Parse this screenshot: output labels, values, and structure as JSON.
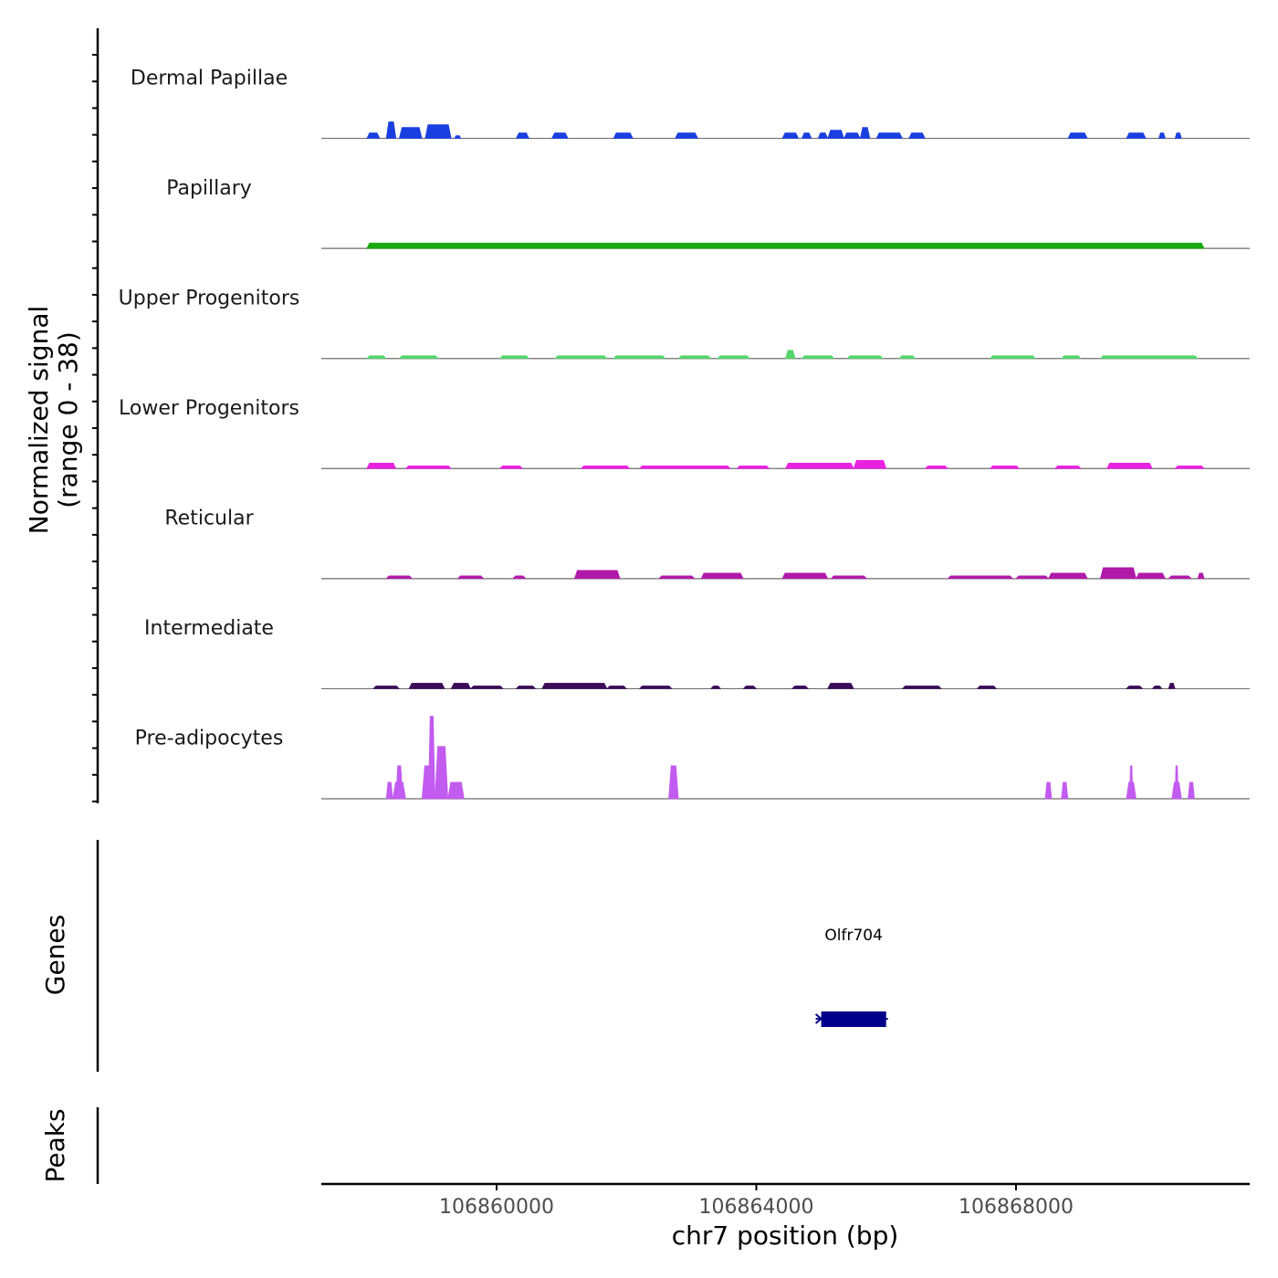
{
  "chart_data": {
    "type": "area",
    "title": "",
    "xlabel": "chr7 position (bp)",
    "ylabel_line1": "Normalized signal",
    "ylabel_line2": "(range 0 - 38)",
    "ylim": [
      0,
      38
    ],
    "xlim": [
      106857300,
      106871600
    ],
    "x_ticks": [
      106860000,
      106864000,
      106868000
    ],
    "x_tick_labels": [
      "106860000",
      "106864000",
      "106868000"
    ],
    "series": [
      {
        "name": "Dermal Papillae",
        "color": "#1a3fe0",
        "segments": [
          {
            "start": 106858000,
            "end": 106858200,
            "value": 2
          },
          {
            "start": 106858300,
            "end": 106858450,
            "value": 6
          },
          {
            "start": 106858500,
            "end": 106858850,
            "value": 4
          },
          {
            "start": 106858900,
            "end": 106859300,
            "value": 5
          },
          {
            "start": 106859350,
            "end": 106859450,
            "value": 1
          },
          {
            "start": 106860300,
            "end": 106860500,
            "value": 2
          },
          {
            "start": 106860850,
            "end": 106861100,
            "value": 2
          },
          {
            "start": 106861800,
            "end": 106862100,
            "value": 2
          },
          {
            "start": 106862750,
            "end": 106863100,
            "value": 2
          },
          {
            "start": 106864400,
            "end": 106864650,
            "value": 2
          },
          {
            "start": 106864700,
            "end": 106864850,
            "value": 2
          },
          {
            "start": 106864950,
            "end": 106865100,
            "value": 2
          },
          {
            "start": 106865100,
            "end": 106865350,
            "value": 3
          },
          {
            "start": 106865350,
            "end": 106865600,
            "value": 2
          },
          {
            "start": 106865600,
            "end": 106865750,
            "value": 4
          },
          {
            "start": 106865850,
            "end": 106866250,
            "value": 2
          },
          {
            "start": 106866350,
            "end": 106866600,
            "value": 2
          },
          {
            "start": 106868800,
            "end": 106869100,
            "value": 2
          },
          {
            "start": 106869700,
            "end": 106870000,
            "value": 2
          },
          {
            "start": 106870200,
            "end": 106870300,
            "value": 2
          },
          {
            "start": 106870450,
            "end": 106870550,
            "value": 2
          }
        ]
      },
      {
        "name": "Papillary",
        "color": "#18a80f",
        "segments": [
          {
            "start": 106858000,
            "end": 106870900,
            "value": 2
          }
        ]
      },
      {
        "name": "Upper Progenitors",
        "color": "#55d46a",
        "segments": [
          {
            "start": 106858000,
            "end": 106858300,
            "value": 1
          },
          {
            "start": 106858500,
            "end": 106859100,
            "value": 1
          },
          {
            "start": 106860050,
            "end": 106860500,
            "value": 1
          },
          {
            "start": 106860900,
            "end": 106861700,
            "value": 1
          },
          {
            "start": 106861800,
            "end": 106862600,
            "value": 1
          },
          {
            "start": 106862800,
            "end": 106863300,
            "value": 1
          },
          {
            "start": 106863400,
            "end": 106863900,
            "value": 1
          },
          {
            "start": 106864450,
            "end": 106864600,
            "value": 3
          },
          {
            "start": 106864700,
            "end": 106865200,
            "value": 1
          },
          {
            "start": 106865400,
            "end": 106865950,
            "value": 1
          },
          {
            "start": 106866200,
            "end": 106866450,
            "value": 1
          },
          {
            "start": 106867600,
            "end": 106868300,
            "value": 1
          },
          {
            "start": 106868700,
            "end": 106869000,
            "value": 1
          },
          {
            "start": 106869300,
            "end": 106870800,
            "value": 1
          }
        ]
      },
      {
        "name": "Lower Progenitors",
        "color": "#e822e0",
        "segments": [
          {
            "start": 106858000,
            "end": 106858450,
            "value": 2
          },
          {
            "start": 106858600,
            "end": 106859300,
            "value": 1
          },
          {
            "start": 106860050,
            "end": 106860400,
            "value": 1
          },
          {
            "start": 106861300,
            "end": 106862050,
            "value": 1
          },
          {
            "start": 106862200,
            "end": 106863600,
            "value": 1
          },
          {
            "start": 106863700,
            "end": 106864200,
            "value": 1
          },
          {
            "start": 106864450,
            "end": 106865500,
            "value": 2
          },
          {
            "start": 106865500,
            "end": 106866000,
            "value": 3
          },
          {
            "start": 106866600,
            "end": 106866950,
            "value": 1
          },
          {
            "start": 106867600,
            "end": 106868050,
            "value": 1
          },
          {
            "start": 106868600,
            "end": 106869000,
            "value": 1
          },
          {
            "start": 106869400,
            "end": 106870100,
            "value": 2
          },
          {
            "start": 106870450,
            "end": 106870900,
            "value": 1
          }
        ]
      },
      {
        "name": "Reticular",
        "color": "#b01aa8",
        "segments": [
          {
            "start": 106858300,
            "end": 106858700,
            "value": 1
          },
          {
            "start": 106859400,
            "end": 106859800,
            "value": 1
          },
          {
            "start": 106860250,
            "end": 106860450,
            "value": 1
          },
          {
            "start": 106861200,
            "end": 106861900,
            "value": 3
          },
          {
            "start": 106862500,
            "end": 106863050,
            "value": 1
          },
          {
            "start": 106863150,
            "end": 106863800,
            "value": 2
          },
          {
            "start": 106864400,
            "end": 106865100,
            "value": 2
          },
          {
            "start": 106865150,
            "end": 106865700,
            "value": 1
          },
          {
            "start": 106866950,
            "end": 106867950,
            "value": 1
          },
          {
            "start": 106868000,
            "end": 106868500,
            "value": 1
          },
          {
            "start": 106868500,
            "end": 106869100,
            "value": 2
          },
          {
            "start": 106869300,
            "end": 106869850,
            "value": 4
          },
          {
            "start": 106869850,
            "end": 106870300,
            "value": 2
          },
          {
            "start": 106870350,
            "end": 106870700,
            "value": 1
          },
          {
            "start": 106870800,
            "end": 106870900,
            "value": 2
          }
        ]
      },
      {
        "name": "Intermediate",
        "color": "#3b0a59",
        "segments": [
          {
            "start": 106858100,
            "end": 106858500,
            "value": 1
          },
          {
            "start": 106858650,
            "end": 106859200,
            "value": 2
          },
          {
            "start": 106859300,
            "end": 106859600,
            "value": 2
          },
          {
            "start": 106859600,
            "end": 106860100,
            "value": 1
          },
          {
            "start": 106860300,
            "end": 106860600,
            "value": 1
          },
          {
            "start": 106860700,
            "end": 106861700,
            "value": 2
          },
          {
            "start": 106861700,
            "end": 106862000,
            "value": 1
          },
          {
            "start": 106862200,
            "end": 106862700,
            "value": 1
          },
          {
            "start": 106863300,
            "end": 106863450,
            "value": 1
          },
          {
            "start": 106863800,
            "end": 106864000,
            "value": 1
          },
          {
            "start": 106864550,
            "end": 106864800,
            "value": 1
          },
          {
            "start": 106865100,
            "end": 106865500,
            "value": 2
          },
          {
            "start": 106866250,
            "end": 106866850,
            "value": 1
          },
          {
            "start": 106867400,
            "end": 106867700,
            "value": 1
          },
          {
            "start": 106869700,
            "end": 106869950,
            "value": 1
          },
          {
            "start": 106870100,
            "end": 106870250,
            "value": 1
          },
          {
            "start": 106870350,
            "end": 106870450,
            "value": 2
          }
        ]
      },
      {
        "name": "Pre-adipocytes",
        "color": "#c25bf0",
        "segments": [
          {
            "start": 106858300,
            "end": 106858400,
            "value": 6
          },
          {
            "start": 106858400,
            "end": 106858600,
            "value": 6
          },
          {
            "start": 106858450,
            "end": 106858550,
            "value": 12
          },
          {
            "start": 106858850,
            "end": 106859050,
            "value": 12
          },
          {
            "start": 106858950,
            "end": 106859050,
            "value": 30
          },
          {
            "start": 106859050,
            "end": 106859250,
            "value": 19
          },
          {
            "start": 106859050,
            "end": 106859250,
            "value": 6
          },
          {
            "start": 106859250,
            "end": 106859500,
            "value": 6
          },
          {
            "start": 106862650,
            "end": 106862800,
            "value": 12
          },
          {
            "start": 106868450,
            "end": 106868550,
            "value": 6
          },
          {
            "start": 106868700,
            "end": 106868800,
            "value": 6
          },
          {
            "start": 106869700,
            "end": 106869850,
            "value": 6
          },
          {
            "start": 106869750,
            "end": 106869800,
            "value": 12
          },
          {
            "start": 106870400,
            "end": 106870550,
            "value": 6
          },
          {
            "start": 106870450,
            "end": 106870500,
            "value": 12
          },
          {
            "start": 106870650,
            "end": 106870750,
            "value": 6
          }
        ]
      }
    ],
    "panels": {
      "genes_label": "Genes",
      "peaks_label": "Peaks"
    },
    "genes": [
      {
        "name": "Olfr704",
        "start": 106865000,
        "end": 106866000,
        "strand": "-",
        "color": "#00008b"
      }
    ],
    "peaks": []
  }
}
